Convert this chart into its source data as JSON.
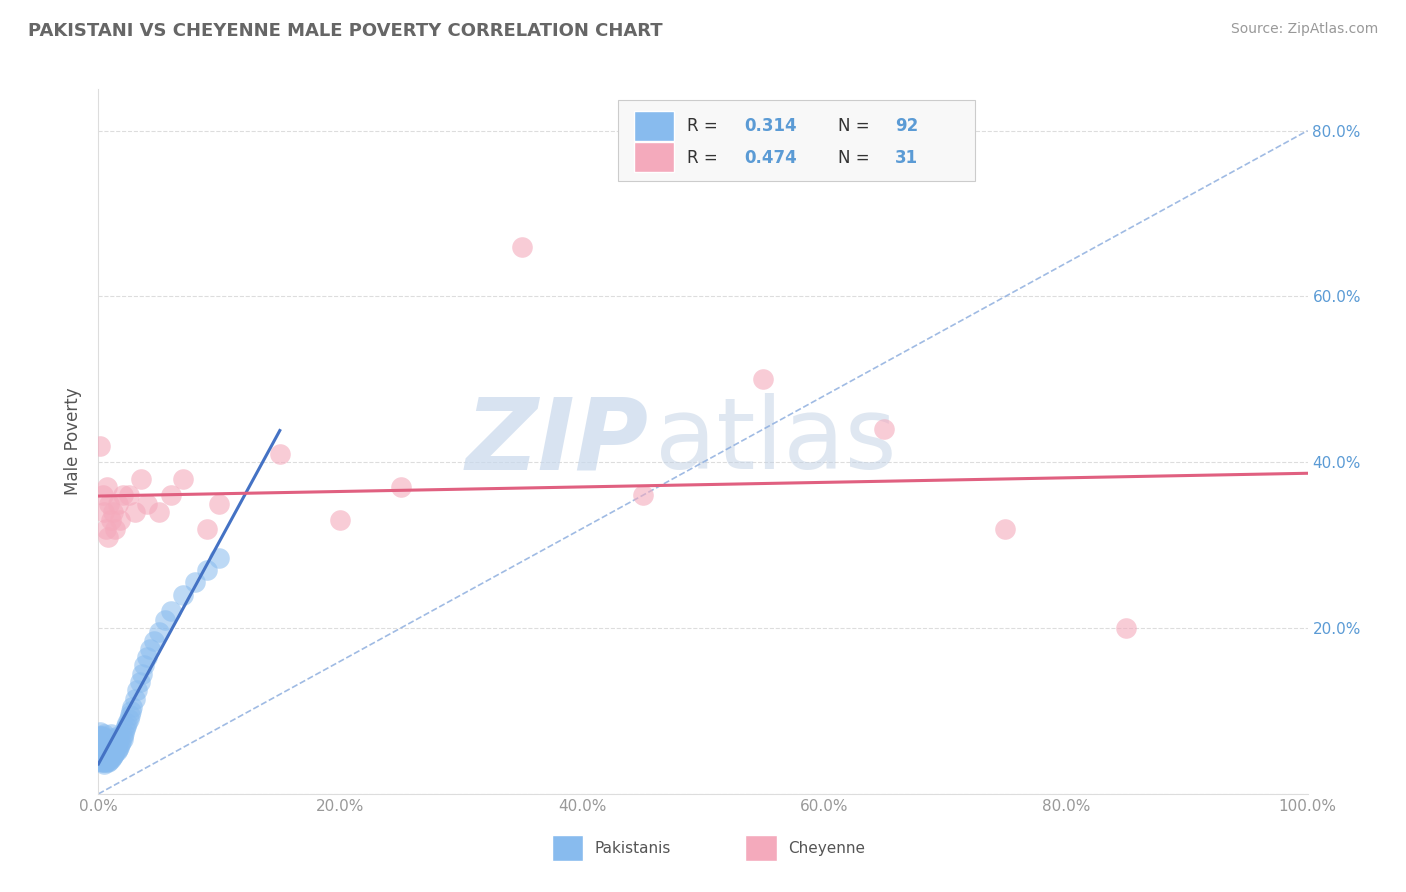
{
  "title": "PAKISTANI VS CHEYENNE MALE POVERTY CORRELATION CHART",
  "source_text": "Source: ZipAtlas.com",
  "ylabel": "Male Poverty",
  "xlim": [
    0,
    1.0
  ],
  "ylim": [
    0,
    0.85
  ],
  "xtick_vals": [
    0.0,
    0.2,
    0.4,
    0.6,
    0.8,
    1.0
  ],
  "xtick_labels": [
    "0.0%",
    "20.0%",
    "40.0%",
    "60.0%",
    "80.0%",
    "100.0%"
  ],
  "ytick_vals": [
    0.0,
    0.2,
    0.4,
    0.6,
    0.8
  ],
  "ytick_labels_right": [
    "",
    "20.0%",
    "40.0%",
    "60.0%",
    "80.0%"
  ],
  "pakistani_color": "#88BBEE",
  "cheyenne_color": "#F4AABC",
  "pakistani_line_color": "#4472C4",
  "cheyenne_line_color": "#E06080",
  "ref_line_color": "#88AADD",
  "watermark_zip": "ZIP",
  "watermark_atlas": "atlas",
  "watermark_color_zip": "#C8D8EC",
  "watermark_color_atlas": "#C0D0E4",
  "tick_color": "#999999",
  "right_tick_color": "#5B9BD5",
  "title_color": "#666666",
  "source_color": "#999999",
  "grid_color": "#DDDDDD",
  "legend_bg": "#F8F8F8",
  "legend_border": "#CCCCCC",
  "pakistani_x": [
    0.001,
    0.001,
    0.001,
    0.001,
    0.001,
    0.001,
    0.001,
    0.001,
    0.002,
    0.002,
    0.002,
    0.002,
    0.002,
    0.002,
    0.002,
    0.003,
    0.003,
    0.003,
    0.003,
    0.003,
    0.003,
    0.004,
    0.004,
    0.004,
    0.004,
    0.004,
    0.005,
    0.005,
    0.005,
    0.005,
    0.005,
    0.005,
    0.006,
    0.006,
    0.006,
    0.006,
    0.007,
    0.007,
    0.007,
    0.007,
    0.008,
    0.008,
    0.008,
    0.008,
    0.009,
    0.009,
    0.009,
    0.01,
    0.01,
    0.01,
    0.01,
    0.011,
    0.011,
    0.011,
    0.012,
    0.012,
    0.013,
    0.013,
    0.014,
    0.014,
    0.015,
    0.015,
    0.016,
    0.016,
    0.017,
    0.018,
    0.019,
    0.02,
    0.02,
    0.021,
    0.022,
    0.023,
    0.024,
    0.025,
    0.026,
    0.027,
    0.028,
    0.03,
    0.032,
    0.034,
    0.036,
    0.038,
    0.04,
    0.043,
    0.046,
    0.05,
    0.055,
    0.06,
    0.07,
    0.08,
    0.09,
    0.1
  ],
  "pakistani_y": [
    0.04,
    0.045,
    0.05,
    0.055,
    0.06,
    0.065,
    0.07,
    0.075,
    0.04,
    0.045,
    0.05,
    0.055,
    0.06,
    0.065,
    0.07,
    0.038,
    0.042,
    0.048,
    0.055,
    0.062,
    0.07,
    0.038,
    0.044,
    0.05,
    0.058,
    0.066,
    0.036,
    0.042,
    0.048,
    0.056,
    0.064,
    0.072,
    0.038,
    0.045,
    0.052,
    0.06,
    0.04,
    0.048,
    0.056,
    0.065,
    0.038,
    0.047,
    0.056,
    0.065,
    0.04,
    0.05,
    0.06,
    0.042,
    0.052,
    0.062,
    0.072,
    0.044,
    0.055,
    0.067,
    0.046,
    0.058,
    0.048,
    0.062,
    0.05,
    0.065,
    0.052,
    0.068,
    0.054,
    0.07,
    0.057,
    0.06,
    0.063,
    0.066,
    0.07,
    0.074,
    0.078,
    0.082,
    0.086,
    0.09,
    0.095,
    0.1,
    0.105,
    0.115,
    0.125,
    0.135,
    0.145,
    0.155,
    0.165,
    0.175,
    0.185,
    0.195,
    0.21,
    0.22,
    0.24,
    0.255,
    0.27,
    0.285
  ],
  "cheyenne_x": [
    0.001,
    0.004,
    0.005,
    0.006,
    0.007,
    0.008,
    0.009,
    0.01,
    0.012,
    0.014,
    0.016,
    0.018,
    0.02,
    0.025,
    0.03,
    0.035,
    0.04,
    0.05,
    0.06,
    0.07,
    0.09,
    0.1,
    0.15,
    0.2,
    0.25,
    0.35,
    0.45,
    0.55,
    0.65,
    0.75,
    0.85
  ],
  "cheyenne_y": [
    0.42,
    0.36,
    0.34,
    0.32,
    0.37,
    0.31,
    0.35,
    0.33,
    0.34,
    0.32,
    0.35,
    0.33,
    0.36,
    0.36,
    0.34,
    0.38,
    0.35,
    0.34,
    0.36,
    0.38,
    0.32,
    0.35,
    0.41,
    0.33,
    0.37,
    0.66,
    0.36,
    0.5,
    0.44,
    0.32,
    0.2
  ]
}
